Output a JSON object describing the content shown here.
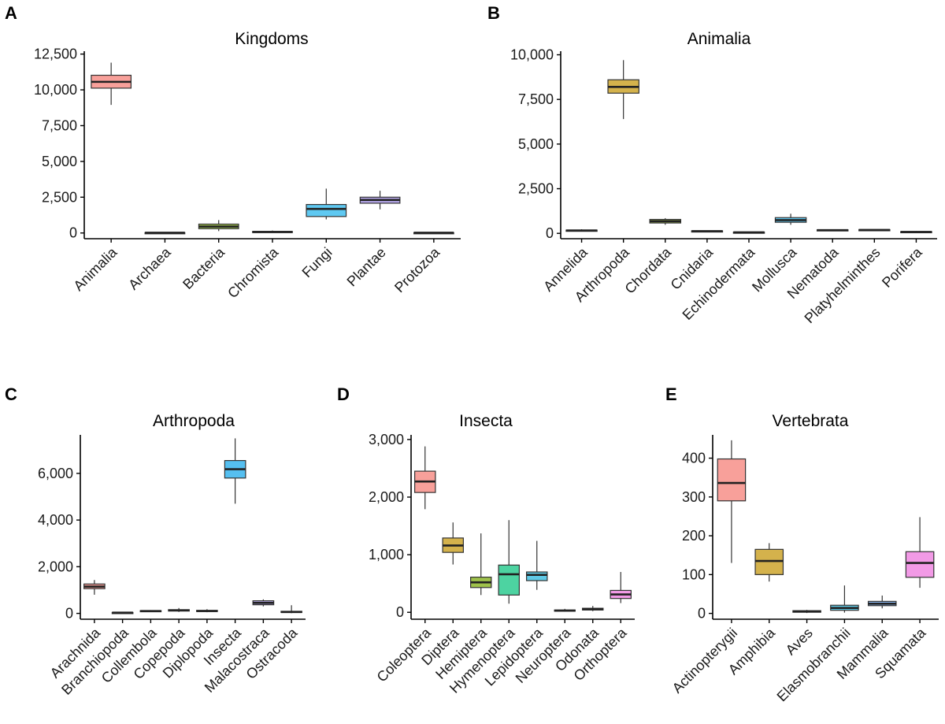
{
  "chart_data": [
    {
      "letter": "A",
      "title": "Kingdoms",
      "type": "boxplot",
      "ylim": [
        -400,
        12700
      ],
      "yticks": [
        0,
        2500,
        5000,
        7500,
        10000,
        12500
      ],
      "yticklabels": [
        "0",
        "2,500",
        "5,000",
        "7,500",
        "10,000",
        "12,500"
      ],
      "categories": [
        "Animalia",
        "Archaea",
        "Bacteria",
        "Chromista",
        "Fungi",
        "Plantae",
        "Protozoa"
      ],
      "boxes": [
        {
          "min": 8950,
          "q1": 10120,
          "median": 10560,
          "q3": 11020,
          "max": 11900,
          "color": "#f8a09a"
        },
        {
          "min": 10,
          "q1": 15,
          "median": 20,
          "q3": 25,
          "max": 30,
          "color": "#e2c77a"
        },
        {
          "min": 130,
          "q1": 300,
          "median": 450,
          "q3": 620,
          "max": 900,
          "color": "#a6c94f"
        },
        {
          "min": 20,
          "q1": 50,
          "median": 70,
          "q3": 110,
          "max": 170,
          "color": "#4dd3a1"
        },
        {
          "min": 950,
          "q1": 1150,
          "median": 1680,
          "q3": 1990,
          "max": 3100,
          "color": "#5fc9f2"
        },
        {
          "min": 1650,
          "q1": 2080,
          "median": 2310,
          "q3": 2500,
          "max": 2950,
          "color": "#b6a8eb"
        },
        {
          "min": 10,
          "q1": 15,
          "median": 20,
          "q3": 25,
          "max": 30,
          "color": "#f29ae6"
        }
      ]
    },
    {
      "letter": "B",
      "title": "Animalia",
      "type": "boxplot",
      "ylim": [
        -300,
        10200
      ],
      "yticks": [
        0,
        2500,
        5000,
        7500,
        10000
      ],
      "yticklabels": [
        "0",
        "2,500",
        "5,000",
        "7,500",
        "10,000"
      ],
      "categories": [
        "Annelida",
        "Arthropoda",
        "Chordata",
        "Cnidaria",
        "Echinodermata",
        "Mollusca",
        "Nematoda",
        "Platyhelminthes",
        "Porifera"
      ],
      "boxes": [
        {
          "min": 120,
          "q1": 140,
          "median": 160,
          "q3": 180,
          "max": 230,
          "color": "#f8a09a"
        },
        {
          "min": 6400,
          "q1": 7850,
          "median": 8200,
          "q3": 8600,
          "max": 9700,
          "color": "#d4b24c"
        },
        {
          "min": 480,
          "q1": 580,
          "median": 680,
          "q3": 780,
          "max": 850,
          "color": "#9fc24b"
        },
        {
          "min": 80,
          "q1": 100,
          "median": 120,
          "q3": 140,
          "max": 160,
          "color": "#4dd3a1"
        },
        {
          "min": 20,
          "q1": 40,
          "median": 55,
          "q3": 70,
          "max": 90,
          "color": "#5fc9e6"
        },
        {
          "min": 480,
          "q1": 620,
          "median": 740,
          "q3": 880,
          "max": 1100,
          "color": "#5fc9f2"
        },
        {
          "min": 130,
          "q1": 160,
          "median": 180,
          "q3": 200,
          "max": 230,
          "color": "#b6a8eb"
        },
        {
          "min": 150,
          "q1": 170,
          "median": 190,
          "q3": 210,
          "max": 230,
          "color": "#e39be0"
        },
        {
          "min": 40,
          "q1": 60,
          "median": 80,
          "q3": 100,
          "max": 130,
          "color": "#f29ac2"
        }
      ]
    },
    {
      "letter": "C",
      "title": "Arthropoda",
      "type": "boxplot",
      "ylim": [
        -250,
        7650
      ],
      "yticks": [
        0,
        2000,
        4000,
        6000
      ],
      "yticklabels": [
        "0",
        "2,000",
        "4,000",
        "6,000"
      ],
      "categories": [
        "Arachnida",
        "Branchiopoda",
        "Collembola",
        "Copepoda",
        "Diplopoda",
        "Insecta",
        "Malacostraca",
        "Ostracoda"
      ],
      "boxes": [
        {
          "min": 800,
          "q1": 1060,
          "median": 1150,
          "q3": 1260,
          "max": 1430,
          "color": "#f8a09a"
        },
        {
          "min": 10,
          "q1": 20,
          "median": 30,
          "q3": 40,
          "max": 50,
          "color": "#d4b24c"
        },
        {
          "min": 60,
          "q1": 80,
          "median": 100,
          "q3": 120,
          "max": 140,
          "color": "#9fc24b"
        },
        {
          "min": 60,
          "q1": 100,
          "median": 130,
          "q3": 160,
          "max": 230,
          "color": "#4dd3a1"
        },
        {
          "min": 50,
          "q1": 80,
          "median": 100,
          "q3": 130,
          "max": 180,
          "color": "#5fc9e6"
        },
        {
          "min": 4700,
          "q1": 5800,
          "median": 6180,
          "q3": 6550,
          "max": 7500,
          "color": "#55bff0"
        },
        {
          "min": 300,
          "q1": 370,
          "median": 450,
          "q3": 540,
          "max": 600,
          "color": "#b6a8eb"
        },
        {
          "min": 10,
          "q1": 40,
          "median": 60,
          "q3": 90,
          "max": 350,
          "color": "#f29ac2"
        }
      ]
    },
    {
      "letter": "D",
      "title": "Insecta",
      "type": "boxplot",
      "ylim": [
        -120,
        3080
      ],
      "yticks": [
        0,
        1000,
        2000,
        3000
      ],
      "yticklabels": [
        "0",
        "1,000",
        "2,000",
        "3,000"
      ],
      "categories": [
        "Coleoptera",
        "Diptera",
        "Hemiptera",
        "Hymenoptera",
        "Lepidoptera",
        "Neuroptera",
        "Odonata",
        "Orthoptera"
      ],
      "boxes": [
        {
          "min": 1790,
          "q1": 2080,
          "median": 2270,
          "q3": 2450,
          "max": 2880,
          "color": "#f8a09a"
        },
        {
          "min": 830,
          "q1": 1040,
          "median": 1160,
          "q3": 1290,
          "max": 1560,
          "color": "#d4b24c"
        },
        {
          "min": 300,
          "q1": 430,
          "median": 520,
          "q3": 610,
          "max": 1370,
          "color": "#9fc24b"
        },
        {
          "min": 150,
          "q1": 300,
          "median": 660,
          "q3": 820,
          "max": 1600,
          "color": "#4dd3a1"
        },
        {
          "min": 390,
          "q1": 550,
          "median": 650,
          "q3": 700,
          "max": 1240,
          "color": "#5fc9e6"
        },
        {
          "min": 10,
          "q1": 20,
          "median": 30,
          "q3": 40,
          "max": 60,
          "color": "#b6a8eb"
        },
        {
          "min": 20,
          "q1": 40,
          "median": 55,
          "q3": 70,
          "max": 110,
          "color": "#c09ae8"
        },
        {
          "min": 160,
          "q1": 240,
          "median": 310,
          "q3": 380,
          "max": 700,
          "color": "#f29ae6"
        }
      ]
    },
    {
      "letter": "E",
      "title": "Vertebrata",
      "type": "boxplot",
      "ylim": [
        -15,
        460
      ],
      "yticks": [
        0,
        100,
        200,
        300,
        400
      ],
      "yticklabels": [
        "0",
        "100",
        "200",
        "300",
        "400"
      ],
      "categories": [
        "Actinopterygii",
        "Amphibia",
        "Aves",
        "Elasmobranchii",
        "Mammalia",
        "Squamata"
      ],
      "boxes": [
        {
          "min": 130,
          "q1": 290,
          "median": 336,
          "q3": 398,
          "max": 446,
          "color": "#f8a09a"
        },
        {
          "min": 82,
          "q1": 100,
          "median": 135,
          "q3": 165,
          "max": 181,
          "color": "#d4b24c"
        },
        {
          "min": 1,
          "q1": 3,
          "median": 5,
          "q3": 7,
          "max": 9,
          "color": "#4dd3a1"
        },
        {
          "min": 2,
          "q1": 8,
          "median": 14,
          "q3": 21,
          "max": 72,
          "color": "#5fc9e6"
        },
        {
          "min": 13,
          "q1": 20,
          "median": 25,
          "q3": 31,
          "max": 46,
          "color": "#8ab8f5"
        },
        {
          "min": 66,
          "q1": 93,
          "median": 130,
          "q3": 159,
          "max": 248,
          "color": "#f29ae6"
        }
      ]
    }
  ]
}
